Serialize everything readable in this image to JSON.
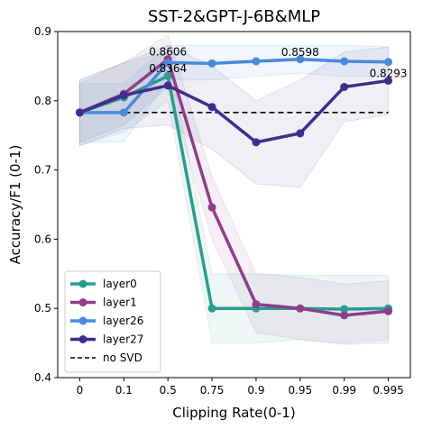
{
  "chart_data": {
    "type": "line",
    "title": "SST-2&GPT-J-6B&MLP",
    "xlabel": "Clipping Rate(0-1)",
    "ylabel": "Accuracy/F1 (0-1)",
    "categories": [
      "0",
      "0.1",
      "0.5",
      "0.75",
      "0.9",
      "0.95",
      "0.99",
      "0.995"
    ],
    "ylim": [
      0.4,
      0.9
    ],
    "yticks": [
      "0.4",
      "0.5",
      "0.6",
      "0.7",
      "0.8",
      "0.9"
    ],
    "baseline": {
      "name": "no SVD",
      "value": 0.783,
      "color": "#000000"
    },
    "series": [
      {
        "name": "layer0",
        "color": "#2a9d8f",
        "values": [
          0.783,
          0.805,
          0.836,
          0.5,
          0.5,
          0.5,
          0.499,
          0.5
        ],
        "lower": [
          0.735,
          0.755,
          0.8,
          0.45,
          0.45,
          0.455,
          0.45,
          0.455
        ],
        "upper": [
          0.83,
          0.855,
          0.87,
          0.55,
          0.55,
          0.548,
          0.548,
          0.548
        ]
      },
      {
        "name": "layer1",
        "color": "#8e3e8a",
        "values": [
          0.783,
          0.81,
          0.86,
          0.646,
          0.506,
          0.5,
          0.49,
          0.496
        ],
        "lower": [
          0.74,
          0.765,
          0.82,
          0.6,
          0.465,
          0.455,
          0.448,
          0.45
        ],
        "upper": [
          0.825,
          0.855,
          0.895,
          0.69,
          0.55,
          0.545,
          0.535,
          0.54
        ]
      },
      {
        "name": "layer26",
        "color": "#4a89dc",
        "values": [
          0.783,
          0.783,
          0.855,
          0.854,
          0.857,
          0.86,
          0.857,
          0.856
        ],
        "lower": [
          0.74,
          0.74,
          0.83,
          0.83,
          0.835,
          0.84,
          0.835,
          0.835
        ],
        "upper": [
          0.825,
          0.825,
          0.88,
          0.88,
          0.88,
          0.88,
          0.88,
          0.878
        ]
      },
      {
        "name": "layer27",
        "color": "#3f2e8c",
        "values": [
          0.783,
          0.808,
          0.822,
          0.791,
          0.74,
          0.753,
          0.82,
          0.829
        ],
        "lower": [
          0.735,
          0.76,
          0.765,
          0.73,
          0.68,
          0.675,
          0.77,
          0.78
        ],
        "upper": [
          0.83,
          0.855,
          0.88,
          0.85,
          0.8,
          0.83,
          0.87,
          0.878
        ]
      }
    ],
    "annotations": [
      {
        "text": "0.8606",
        "x": "0.5",
        "y": 0.8606
      },
      {
        "text": "0.8364",
        "x": "0.5",
        "y": 0.8364
      },
      {
        "text": "0.8598",
        "x": "0.95",
        "y": 0.8598
      },
      {
        "text": "0.8293",
        "x": "0.995",
        "y": 0.8293
      }
    ],
    "legend": {
      "position": "lower-left"
    },
    "grid": false
  }
}
